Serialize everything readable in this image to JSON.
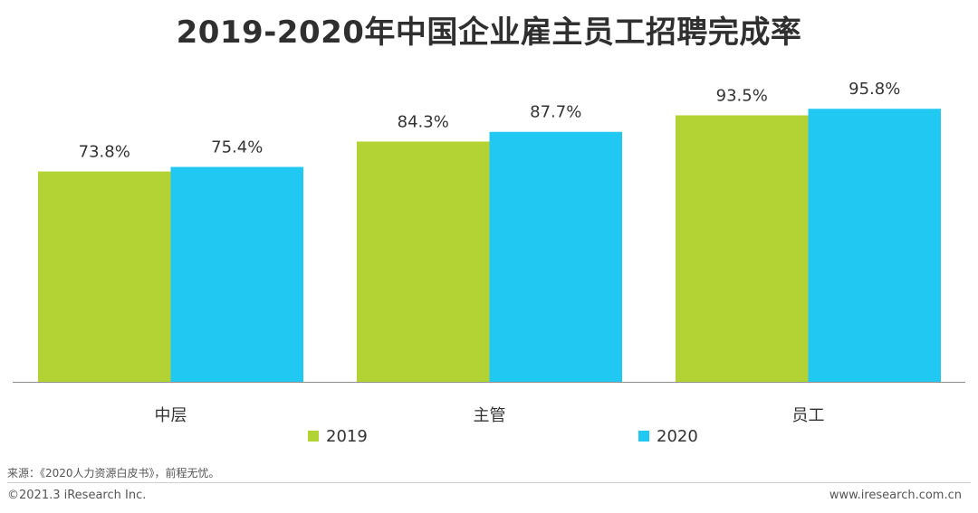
{
  "title": "2019-2020年中国企业雇主员工招聘完成率",
  "chart_data": {
    "type": "bar",
    "categories": [
      "中层",
      "主管",
      "员工"
    ],
    "series": [
      {
        "name": "2019",
        "values": [
          73.8,
          84.3,
          93.5
        ],
        "labels": [
          "73.8%",
          "84.3%",
          "93.5%"
        ],
        "color": "#b3d334"
      },
      {
        "name": "2020",
        "values": [
          75.4,
          87.7,
          95.8
        ],
        "labels": [
          "75.4%",
          "87.7%",
          "95.8%"
        ],
        "color": "#21c8f2"
      }
    ],
    "ylim": [
      0,
      100
    ],
    "grid": false,
    "legend_position": "bottom"
  },
  "footer": {
    "source": "来源：《2020人力资源白皮书》，前程无忧。",
    "copyright": "©2021.3 iResearch Inc.",
    "website": "www.iresearch.com.cn"
  }
}
